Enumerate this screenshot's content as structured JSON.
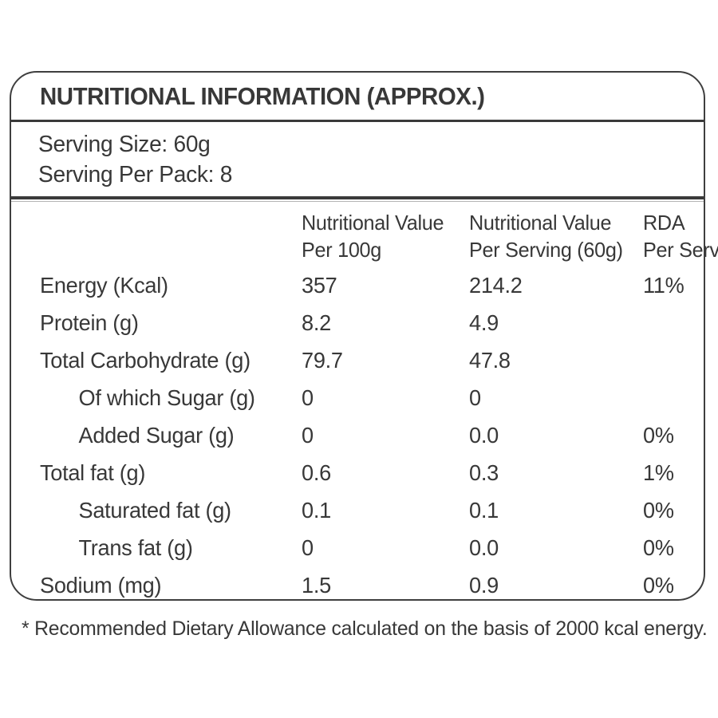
{
  "label": {
    "title": "NUTRITIONAL INFORMATION (APPROX.)",
    "serving": {
      "size": "Serving Size: 60g",
      "per_pack": "Serving Per Pack: 8"
    },
    "footnote": "* Recommended Dietary Allowance calculated on the basis of 2000 kcal energy."
  },
  "table": {
    "columns": [
      {
        "line1": "Nutritional Value",
        "line2": "Per 100g"
      },
      {
        "line1": "Nutritional Value",
        "line2": "Per Serving (60g)"
      },
      {
        "line1": "RDA",
        "line2": "Per Serving*"
      }
    ],
    "rows": [
      {
        "name": "Energy (Kcal)",
        "indent": false,
        "per_100g": "357",
        "per_serving": "214.2",
        "rda": "11%"
      },
      {
        "name": "Protein (g)",
        "indent": false,
        "per_100g": "8.2",
        "per_serving": "4.9",
        "rda": ""
      },
      {
        "name": "Total Carbohydrate (g)",
        "indent": false,
        "per_100g": "79.7",
        "per_serving": "47.8",
        "rda": ""
      },
      {
        "name": "Of which Sugar (g)",
        "indent": true,
        "per_100g": "0",
        "per_serving": "0",
        "rda": ""
      },
      {
        "name": "Added Sugar (g)",
        "indent": true,
        "per_100g": "0",
        "per_serving": "0.0",
        "rda": "0%"
      },
      {
        "name": "Total fat (g)",
        "indent": false,
        "per_100g": "0.6",
        "per_serving": "0.3",
        "rda": "1%"
      },
      {
        "name": "Saturated fat (g)",
        "indent": true,
        "per_100g": "0.1",
        "per_serving": "0.1",
        "rda": "0%"
      },
      {
        "name": "Trans fat (g)",
        "indent": true,
        "per_100g": "0",
        "per_serving": "0.0",
        "rda": "0%"
      },
      {
        "name": "Sodium (mg)",
        "indent": false,
        "per_100g": "1.5",
        "per_serving": "0.9",
        "rda": "0%"
      }
    ]
  },
  "colors": {
    "text": "#383838",
    "border": "#3f3f3f",
    "background": "#ffffff"
  }
}
